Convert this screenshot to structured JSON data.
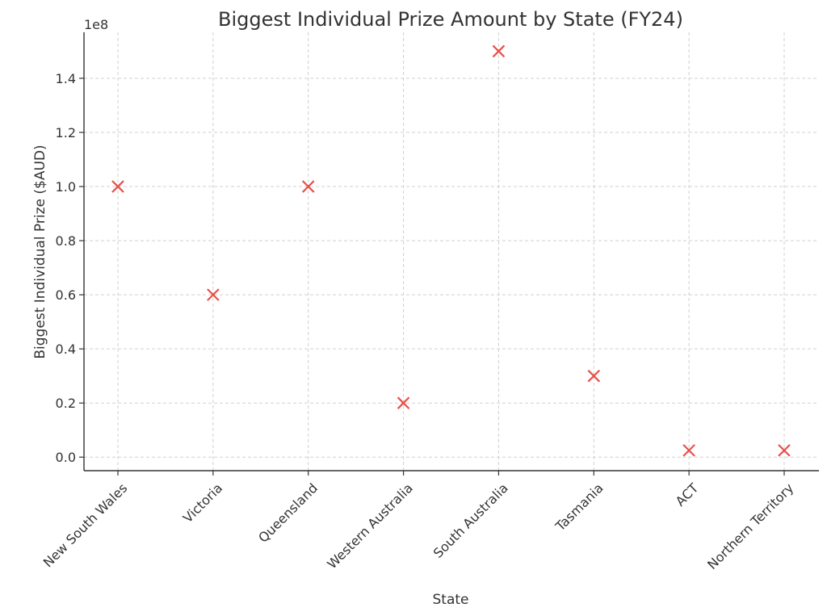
{
  "chart_data": {
    "type": "scatter",
    "title": "Biggest Individual Prize Amount by State (FY24)",
    "xlabel": "State",
    "ylabel": "Biggest Individual Prize ($AUD)",
    "y_offset_label": "1e8",
    "y_scale_factor": 100000000,
    "categories": [
      "New South Wales",
      "Victoria",
      "Queensland",
      "Western Australia",
      "South Australia",
      "Tasmania",
      "ACT",
      "Northern Territory"
    ],
    "values": [
      100000000,
      60000000,
      100000000,
      20000000,
      150000000,
      30000000,
      2500000,
      2500000
    ],
    "ylim": [
      -5000000,
      157000000
    ],
    "yticks": [
      0,
      20000000,
      40000000,
      60000000,
      80000000,
      100000000,
      120000000,
      140000000
    ],
    "ytick_labels": [
      "0.0",
      "0.2",
      "0.4",
      "0.6",
      "0.8",
      "1.0",
      "1.2",
      "1.4"
    ],
    "marker": "x",
    "marker_color": "#e8504a",
    "grid": true
  }
}
